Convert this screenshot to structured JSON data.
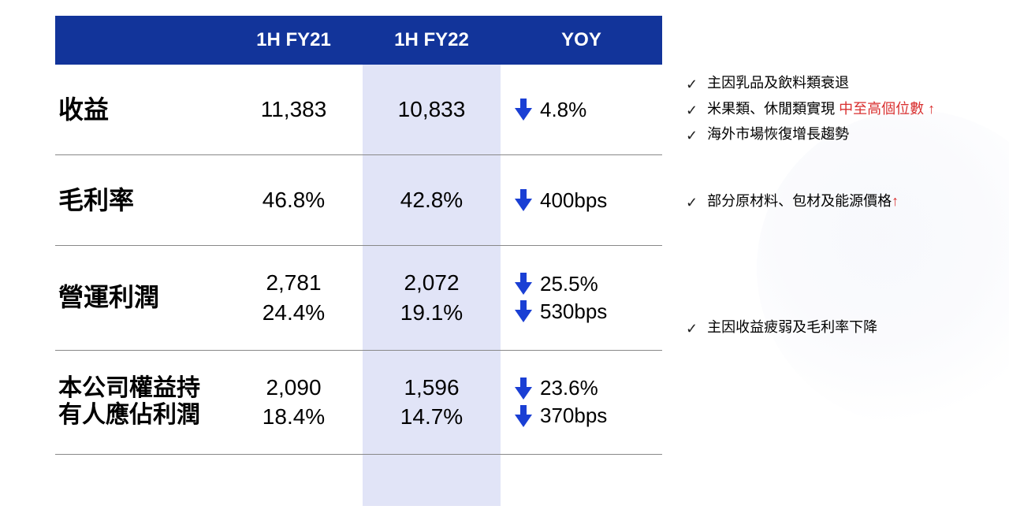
{
  "colors": {
    "header_bg": "#12349a",
    "header_text": "#ffffff",
    "highlight_col": "#c8cef0",
    "arrow_blue": "#1a3fd4",
    "text_red": "#d93030",
    "divider": "#888888",
    "body_text": "#000000"
  },
  "table": {
    "headers": {
      "label": "",
      "fy21": "1H FY21",
      "fy22": "1H FY22",
      "yoy": "YOY"
    },
    "rows": [
      {
        "label": "收益",
        "fy21": "11,383",
        "fy22": "10,833",
        "yoy": [
          {
            "dir": "down",
            "value": "4.8%"
          }
        ]
      },
      {
        "label": "毛利率",
        "fy21": "46.8%",
        "fy22": "42.8%",
        "yoy": [
          {
            "dir": "down",
            "value": "400bps"
          }
        ]
      },
      {
        "label": "營運利潤",
        "fy21_a": "2,781",
        "fy21_b": "24.4%",
        "fy22_a": "2,072",
        "fy22_b": "19.1%",
        "yoy": [
          {
            "dir": "down",
            "value": "25.5%"
          },
          {
            "dir": "down",
            "value": "530bps"
          }
        ]
      },
      {
        "label_a": "本公司權益持",
        "label_b": "有人應佔利潤",
        "fy21_a": "2,090",
        "fy21_b": "18.4%",
        "fy22_a": "1,596",
        "fy22_b": "14.7%",
        "yoy": [
          {
            "dir": "down",
            "value": "23.6%"
          },
          {
            "dir": "down",
            "value": "370bps"
          }
        ]
      }
    ]
  },
  "notes": {
    "block1": {
      "line1": "主因乳品及飲料類衰退",
      "line2_a": "米果類、休閒類實現 ",
      "line2_red": "中至高個位數",
      "line2_arrow": "↑",
      "line3": "海外市場恢復增長趨勢"
    },
    "block2": {
      "line1_a": "部分原材料、包材及能源價格",
      "line1_arrow": "↑"
    },
    "block3": {
      "line1": "主因收益疲弱及毛利率下降"
    }
  }
}
